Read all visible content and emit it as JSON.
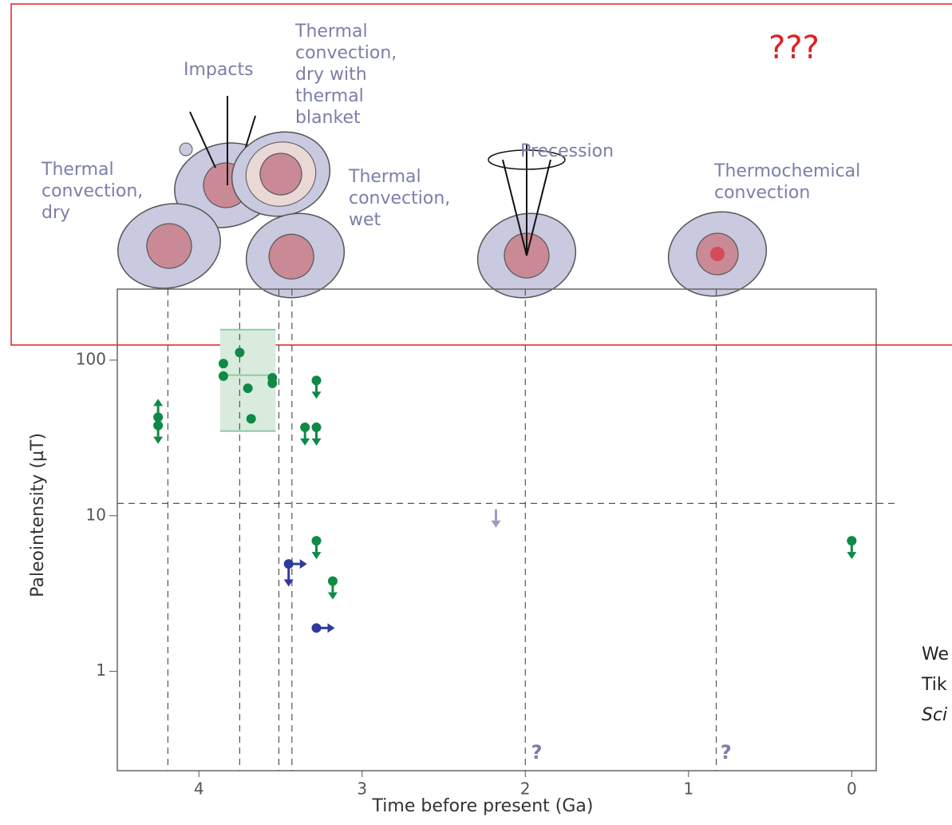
{
  "chart_data": {
    "type": "scatter",
    "annotation": "???",
    "illustration_labels": [
      [
        "Thermal",
        "convection,",
        "dry"
      ],
      [
        "Impacts"
      ],
      [
        "Thermal",
        "convection,",
        "dry with",
        "thermal",
        "blanket"
      ],
      [
        "Thermal",
        "convection,",
        "wet"
      ],
      [
        "Precession"
      ],
      [
        "Thermochemical",
        "convection"
      ]
    ],
    "side_text": [
      "We",
      "Tik",
      "Sci"
    ],
    "x_label": "Time before present (Ga)",
    "y_label": "Paleointensity (µT)",
    "xlim": [
      4.5,
      -0.15
    ],
    "xticks": [
      4,
      3,
      2,
      1,
      0
    ],
    "ylim": [
      0.23,
      286
    ],
    "yticks": [
      1,
      10,
      100
    ],
    "log_y": true,
    "box": {
      "x": [
        3.87,
        3.53
      ],
      "low": 35,
      "high": 157,
      "median": 80,
      "color": "#d8ebdd",
      "edge": "#8fcba1"
    },
    "hline": 12,
    "vlines": [
      4.19,
      3.75,
      3.51,
      3.43,
      2.0,
      0.83
    ],
    "question_marks": [
      {
        "x": 1.93,
        "text": "?"
      },
      {
        "x": 0.77,
        "text": "?"
      }
    ],
    "series": [
      {
        "color": "#0e8a45",
        "marker": "dot",
        "arrow": "none",
        "x": [
          3.85,
          3.85,
          3.75,
          3.7,
          3.68,
          3.55,
          3.55
        ],
        "values": [
          95,
          79,
          112,
          66,
          42,
          77,
          71
        ]
      },
      {
        "color": "#0e8a45",
        "marker": "dot",
        "arrow": "down",
        "x": [
          4.25,
          3.28,
          3.35,
          3.28,
          3.28,
          3.18,
          0
        ],
        "values": [
          38,
          74,
          37,
          37,
          6.9,
          3.8,
          6.9
        ]
      },
      {
        "color": "#0e8a45",
        "marker": "dot",
        "arrow": "up",
        "x": [
          4.25
        ],
        "values": [
          43
        ]
      },
      {
        "color": "#2e3a9e",
        "marker": "dot",
        "arrow": "right",
        "x": [
          3.45,
          3.28
        ],
        "values": [
          4.9,
          1.9
        ]
      },
      {
        "color": "#2e3a9e",
        "marker": "none",
        "arrow": "down",
        "x": [
          3.45
        ],
        "values": [
          4.6
        ]
      },
      {
        "color": "#9a9cc4",
        "marker": "none",
        "arrow": "down",
        "x": [
          2.18
        ],
        "values": [
          11
        ]
      }
    ]
  }
}
